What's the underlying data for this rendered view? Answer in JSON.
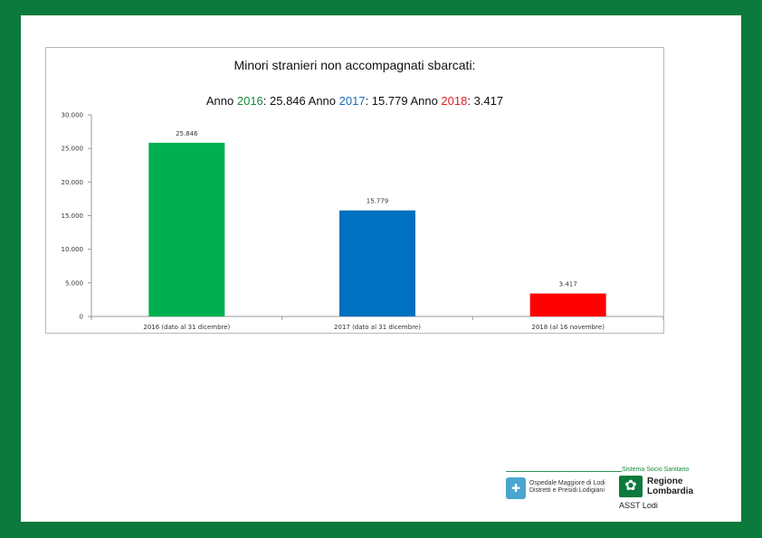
{
  "chart_data": {
    "type": "bar",
    "title": "Minori stranieri non accompagnati sbarcati:",
    "subtitle": {
      "p1": "Anno ",
      "y1": "2016",
      "v1": ": 25.846   Anno ",
      "y2": "2017",
      "v2": ": 15.779   Anno ",
      "y3": "2018",
      "v3": ": 3.417"
    },
    "categories": [
      "2016 (dato al 31 dicembre)",
      "2017 (dato al 31 dicembre)",
      "2018 (al 16 novembre)"
    ],
    "values": [
      25846,
      15779,
      3417
    ],
    "value_labels": [
      "25.846",
      "15.779",
      "3.417"
    ],
    "bar_colors": [
      "#00b050",
      "#0070c0",
      "#ff0000"
    ],
    "ylim": [
      0,
      30000
    ],
    "yticks": [
      0,
      5000,
      10000,
      15000,
      20000,
      25000,
      30000
    ],
    "ytick_labels": [
      "0",
      "5.000",
      "10.000",
      "15.000",
      "20.000",
      "25.000",
      "30.000"
    ],
    "grid": false,
    "xlabel": "",
    "ylabel": ""
  },
  "logos": {
    "header": "Sistema Socio Sanitario",
    "hospital_line1": "Ospedale Maggiore di Lodi",
    "hospital_line2": "Distretti e Presidi Lodigiani",
    "region_line1": "Regione",
    "region_line2": "Lombardia",
    "asst": "ASST Lodi"
  },
  "colors": {
    "frame": "#0c7a3c"
  }
}
